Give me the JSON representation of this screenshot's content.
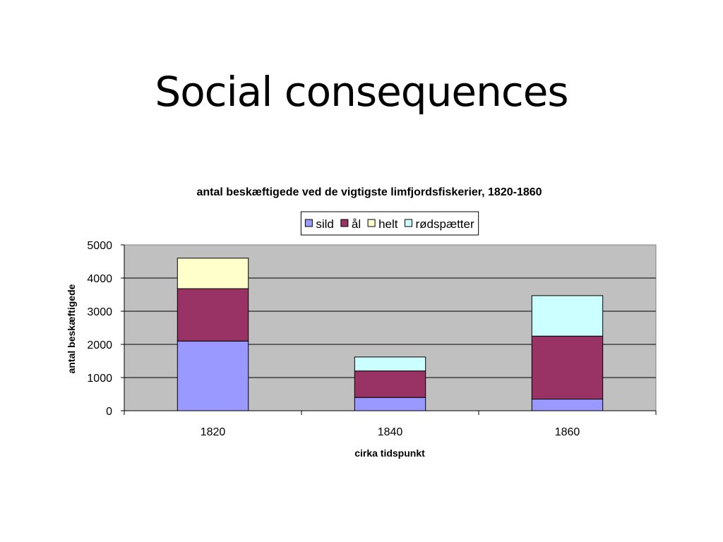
{
  "slide": {
    "title": "Social consequences"
  },
  "chart_data": {
    "type": "bar",
    "stacked": true,
    "title": "antal beskæftigede ved de vigtigste limfjordsfiskerier, 1820-1860",
    "xlabel": "cirka tidspunkt",
    "ylabel": "antal beskæftigede",
    "categories": [
      "1820",
      "1840",
      "1860"
    ],
    "ylim": [
      0,
      5000
    ],
    "yticks": [
      0,
      1000,
      2000,
      3000,
      4000,
      5000
    ],
    "grid": true,
    "legend_position": "top",
    "plot_background": "#c0c0c0",
    "series": [
      {
        "name": "sild",
        "color": "#9999ff",
        "values": [
          2100,
          400,
          350
        ]
      },
      {
        "name": "ål",
        "color": "#993366",
        "values": [
          1580,
          800,
          1900
        ]
      },
      {
        "name": "helt",
        "color": "#ffffcc",
        "values": [
          920,
          0,
          0
        ]
      },
      {
        "name": "rødspætter",
        "color": "#ccffff",
        "values": [
          0,
          420,
          1220
        ]
      }
    ]
  }
}
